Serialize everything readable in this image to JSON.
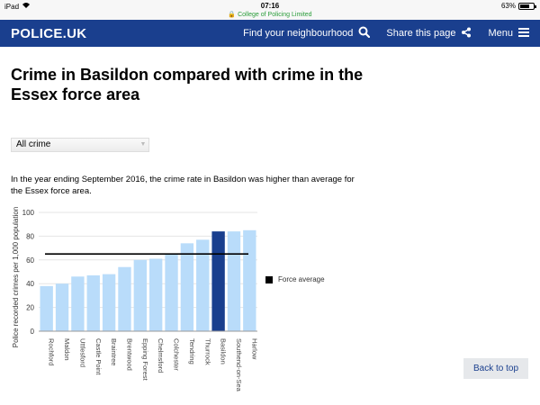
{
  "status_bar": {
    "device": "iPad",
    "time": "07:16",
    "domain": "College of Policing Limited",
    "battery": "63%",
    "battery_level": 0.63
  },
  "header": {
    "logo": "POLICE.UK",
    "nav": [
      {
        "label": "Find your neighbourhood",
        "icon": "search-icon"
      },
      {
        "label": "Share this page",
        "icon": "share-icon"
      },
      {
        "label": "Menu",
        "icon": "menu-icon"
      }
    ]
  },
  "page": {
    "title": "Crime in Basildon compared with crime in the Essex force area",
    "filter_value": "All crime",
    "summary": "In the year ending September 2016, the crime rate in Basildon was higher than average for the Essex force area.",
    "back_to_top": "Back to top"
  },
  "colors": {
    "brand": "#1a3f8e",
    "bar": "#b9dcfa",
    "highlight_bar": "#1a3f8e",
    "force_average_line": "#000000"
  },
  "chart_data": {
    "type": "bar",
    "ylabel": "Police recorded crimes per 1,000 population",
    "ylim": [
      0,
      100
    ],
    "yticks": [
      0,
      20,
      40,
      60,
      80,
      100
    ],
    "categories": [
      "Rochford",
      "Maldon",
      "Uttlesford",
      "Castle Point",
      "Braintree",
      "Brentwood",
      "Epping Forest",
      "Chelmsford",
      "Colchester",
      "Tendring",
      "Thurrock",
      "Basildon",
      "Southend-on-Sea",
      "Harlow"
    ],
    "values": [
      38,
      40,
      46,
      47,
      48,
      54,
      60,
      61,
      65,
      74,
      77,
      84,
      84,
      85
    ],
    "highlight": "Basildon",
    "force_average": 65,
    "legend": "Force average"
  }
}
